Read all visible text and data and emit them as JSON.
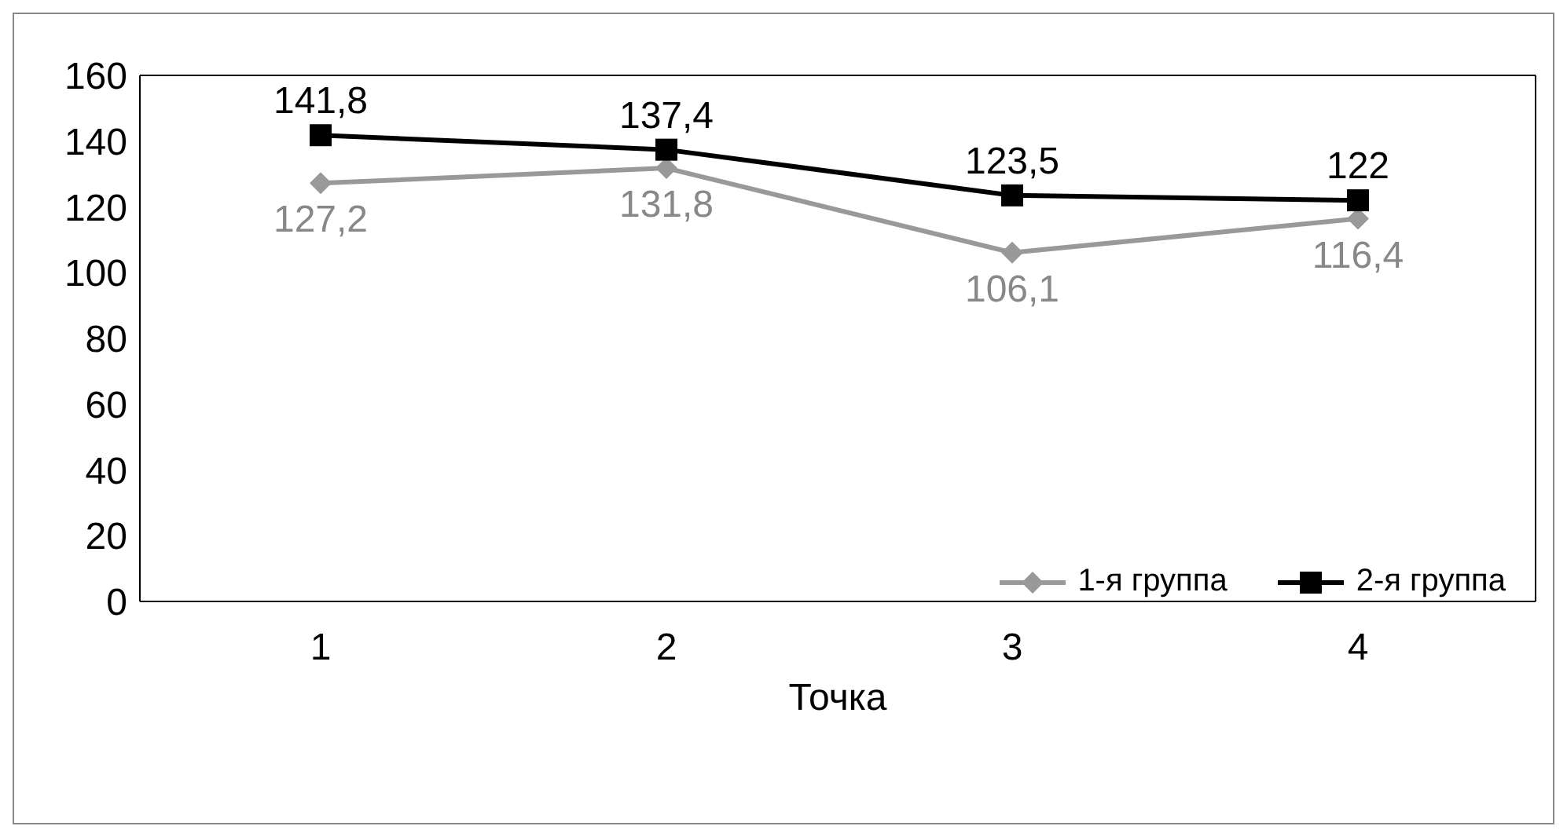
{
  "chart_data": {
    "type": "line",
    "xlabel": "Точка",
    "categories": [
      "1",
      "2",
      "3",
      "4"
    ],
    "series": [
      {
        "name": "1-я группа",
        "color": "#999999",
        "marker": "diamond",
        "values": [
          127.2,
          131.8,
          106.1,
          116.4
        ],
        "value_labels": [
          "127,2",
          "131,8",
          "106,1",
          "116,4"
        ]
      },
      {
        "name": "2-я группа",
        "color": "#000000",
        "marker": "square",
        "values": [
          141.8,
          137.4,
          123.5,
          122
        ],
        "value_labels": [
          "141,8",
          "137,4",
          "123,5",
          "122"
        ]
      }
    ],
    "ylim": [
      0,
      160
    ],
    "yticks": [
      0,
      20,
      40,
      60,
      80,
      100,
      120,
      140,
      160
    ],
    "grid": false,
    "legend": "bottom right"
  }
}
